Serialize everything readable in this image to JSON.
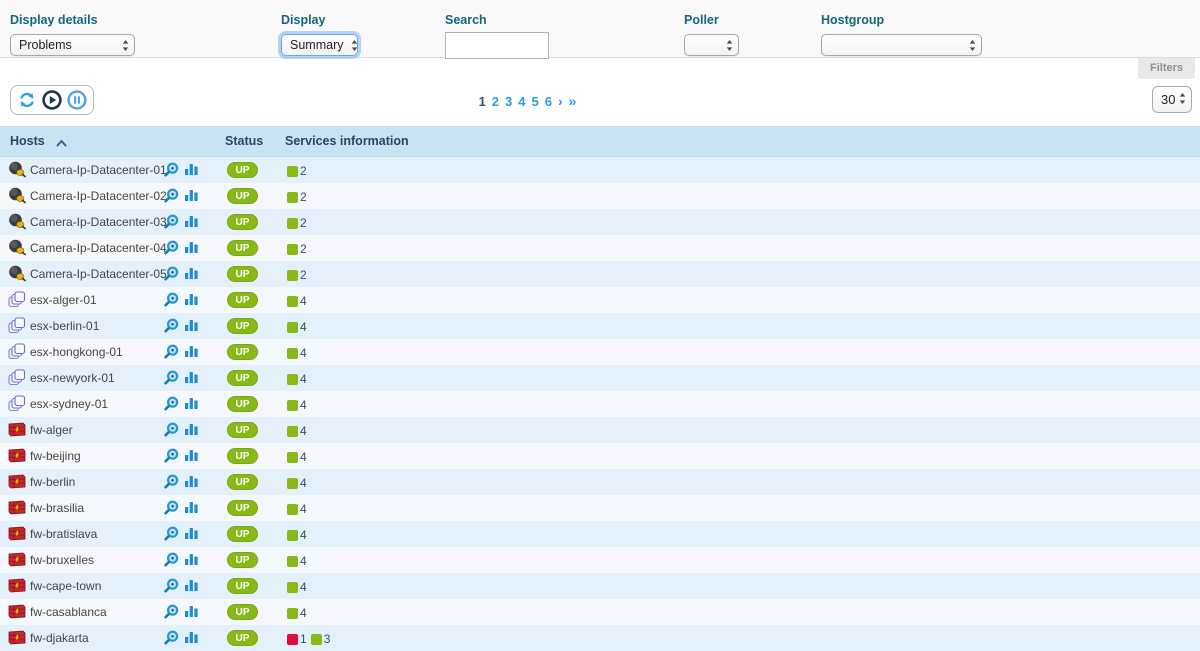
{
  "filters": {
    "display_details": {
      "label": "Display details",
      "value": "Problems"
    },
    "display": {
      "label": "Display",
      "value": "Summary"
    },
    "search": {
      "label": "Search",
      "value": ""
    },
    "poller": {
      "label": "Poller",
      "value": ""
    },
    "hostgroup": {
      "label": "Hostgroup",
      "value": ""
    },
    "filters_button": "Filters"
  },
  "toolbar": {
    "page_size": "30",
    "pagination": {
      "current": "1",
      "pages": [
        "1",
        "2",
        "3",
        "4",
        "5",
        "6"
      ],
      "next": "›",
      "last": "»"
    }
  },
  "table": {
    "columns": {
      "hosts": "Hosts",
      "status": "Status",
      "services": "Services information"
    },
    "rows": [
      {
        "name": "Camera-Ip-Datacenter-01",
        "icon": "camera",
        "status": "UP",
        "services": [
          {
            "state": "ok",
            "count": "2"
          }
        ]
      },
      {
        "name": "Camera-Ip-Datacenter-02",
        "icon": "camera",
        "status": "UP",
        "services": [
          {
            "state": "ok",
            "count": "2"
          }
        ]
      },
      {
        "name": "Camera-Ip-Datacenter-03",
        "icon": "camera",
        "status": "UP",
        "services": [
          {
            "state": "ok",
            "count": "2"
          }
        ]
      },
      {
        "name": "Camera-Ip-Datacenter-04",
        "icon": "camera",
        "status": "UP",
        "services": [
          {
            "state": "ok",
            "count": "2"
          }
        ]
      },
      {
        "name": "Camera-Ip-Datacenter-05",
        "icon": "camera",
        "status": "UP",
        "services": [
          {
            "state": "ok",
            "count": "2"
          }
        ]
      },
      {
        "name": "esx-alger-01",
        "icon": "esx",
        "status": "UP",
        "services": [
          {
            "state": "ok",
            "count": "4"
          }
        ]
      },
      {
        "name": "esx-berlin-01",
        "icon": "esx",
        "status": "UP",
        "services": [
          {
            "state": "ok",
            "count": "4"
          }
        ]
      },
      {
        "name": "esx-hongkong-01",
        "icon": "esx",
        "status": "UP",
        "services": [
          {
            "state": "ok",
            "count": "4"
          }
        ]
      },
      {
        "name": "esx-newyork-01",
        "icon": "esx",
        "status": "UP",
        "services": [
          {
            "state": "ok",
            "count": "4"
          }
        ]
      },
      {
        "name": "esx-sydney-01",
        "icon": "esx",
        "status": "UP",
        "services": [
          {
            "state": "ok",
            "count": "4"
          }
        ]
      },
      {
        "name": "fw-alger",
        "icon": "firewall",
        "status": "UP",
        "services": [
          {
            "state": "ok",
            "count": "4"
          }
        ]
      },
      {
        "name": "fw-beijing",
        "icon": "firewall",
        "status": "UP",
        "services": [
          {
            "state": "ok",
            "count": "4"
          }
        ]
      },
      {
        "name": "fw-berlin",
        "icon": "firewall",
        "status": "UP",
        "services": [
          {
            "state": "ok",
            "count": "4"
          }
        ]
      },
      {
        "name": "fw-brasilia",
        "icon": "firewall",
        "status": "UP",
        "services": [
          {
            "state": "ok",
            "count": "4"
          }
        ]
      },
      {
        "name": "fw-bratislava",
        "icon": "firewall",
        "status": "UP",
        "services": [
          {
            "state": "ok",
            "count": "4"
          }
        ]
      },
      {
        "name": "fw-bruxelles",
        "icon": "firewall",
        "status": "UP",
        "services": [
          {
            "state": "ok",
            "count": "4"
          }
        ]
      },
      {
        "name": "fw-cape-town",
        "icon": "firewall",
        "status": "UP",
        "services": [
          {
            "state": "ok",
            "count": "4"
          }
        ]
      },
      {
        "name": "fw-casablanca",
        "icon": "firewall",
        "status": "UP",
        "services": [
          {
            "state": "ok",
            "count": "4"
          }
        ]
      },
      {
        "name": "fw-djakarta",
        "icon": "firewall",
        "status": "UP",
        "services": [
          {
            "state": "critical",
            "count": "1"
          },
          {
            "state": "ok",
            "count": "3"
          }
        ]
      }
    ]
  },
  "colors": {
    "label_teal": "#17657d",
    "accent_blue": "#2d9cdb",
    "header_bg": "#c7e4f3",
    "row_odd": "#e4f0fa",
    "row_even": "#f5f8fd",
    "status_up": "#88b917",
    "status_ok": "#88b917",
    "status_critical": "#e00b3d"
  }
}
